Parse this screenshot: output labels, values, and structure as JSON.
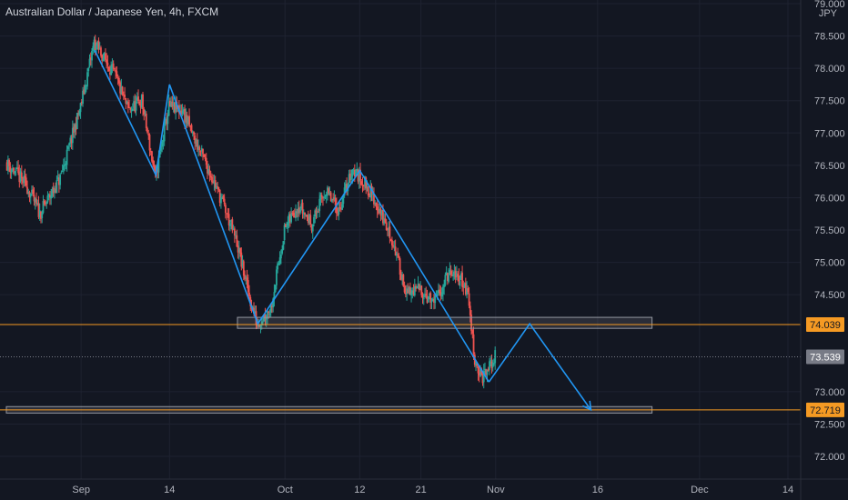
{
  "header": {
    "title": "Australian Dollar / Japanese Yen, 4h, FXCM",
    "currency": "JPY"
  },
  "chart_data": {
    "type": "candlestick",
    "ylim": [
      71.86,
      79.0
    ],
    "y_ticks": [
      {
        "value": 79.0,
        "label": "79.000"
      },
      {
        "value": 78.5,
        "label": "78.500"
      },
      {
        "value": 78.0,
        "label": "78.000"
      },
      {
        "value": 77.5,
        "label": "77.500"
      },
      {
        "value": 77.0,
        "label": "77.000"
      },
      {
        "value": 76.5,
        "label": "76.500"
      },
      {
        "value": 76.0,
        "label": "76.000"
      },
      {
        "value": 75.5,
        "label": "75.500"
      },
      {
        "value": 75.0,
        "label": "75.000"
      },
      {
        "value": 74.5,
        "label": "74.500"
      },
      {
        "value": 73.0,
        "label": "73.000"
      },
      {
        "value": 72.5,
        "label": "72.500"
      },
      {
        "value": 72.0,
        "label": "72.000"
      }
    ],
    "xlim": [
      "2020-08-21",
      "2020-12-14"
    ],
    "x_ticks": [
      {
        "date": "2020-09-01",
        "label": "Sep"
      },
      {
        "date": "2020-09-14",
        "label": "14"
      },
      {
        "date": "2020-10-01",
        "label": "Oct"
      },
      {
        "date": "2020-10-12",
        "label": "12"
      },
      {
        "date": "2020-10-21",
        "label": "21"
      },
      {
        "date": "2020-11-01",
        "label": "Nov"
      },
      {
        "date": "2020-11-16",
        "label": "16"
      },
      {
        "date": "2020-12-01",
        "label": "Dec"
      },
      {
        "date": "2020-12-14",
        "label": "14"
      }
    ],
    "price_path": [
      [
        "2020-08-21",
        76.55
      ],
      [
        "2020-08-24",
        76.2
      ],
      [
        "2020-08-26",
        75.75
      ],
      [
        "2020-08-29",
        76.3
      ],
      [
        "2020-09-01",
        77.4
      ],
      [
        "2020-09-03",
        78.4
      ],
      [
        "2020-09-06",
        77.9
      ],
      [
        "2020-09-08",
        77.35
      ],
      [
        "2020-09-10",
        77.5
      ],
      [
        "2020-09-12",
        76.3
      ],
      [
        "2020-09-14",
        77.4
      ],
      [
        "2020-09-16",
        77.35
      ],
      [
        "2020-09-18",
        76.85
      ],
      [
        "2020-09-20",
        76.4
      ],
      [
        "2020-09-22",
        75.9
      ],
      [
        "2020-09-24",
        75.3
      ],
      [
        "2020-09-26",
        74.4
      ],
      [
        "2020-09-27",
        74.05
      ],
      [
        "2020-09-29",
        74.3
      ],
      [
        "2020-10-01",
        75.5
      ],
      [
        "2020-10-03",
        75.9
      ],
      [
        "2020-10-05",
        75.6
      ],
      [
        "2020-10-07",
        76.1
      ],
      [
        "2020-10-09",
        75.8
      ],
      [
        "2020-10-11",
        76.45
      ],
      [
        "2020-10-13",
        76.2
      ],
      [
        "2020-10-15",
        75.8
      ],
      [
        "2020-10-17",
        75.3
      ],
      [
        "2020-10-19",
        74.5
      ],
      [
        "2020-10-21",
        74.6
      ],
      [
        "2020-10-23",
        74.35
      ],
      [
        "2020-10-25",
        74.8
      ],
      [
        "2020-10-27",
        74.75
      ],
      [
        "2020-10-28",
        74.5
      ],
      [
        "2020-10-29",
        73.5
      ],
      [
        "2020-10-30",
        73.2
      ],
      [
        "2020-10-31",
        73.35
      ],
      [
        "2020-11-01",
        73.539
      ]
    ],
    "annotations": {
      "zigzag_lines": [
        [
          [
            "2020-09-03",
            78.28
          ],
          [
            "2020-09-12",
            76.35
          ],
          [
            "2020-09-14",
            77.75
          ],
          [
            "2020-09-27",
            74.05
          ],
          [
            "2020-10-12",
            76.42
          ],
          [
            "2020-10-31",
            73.15
          ]
        ],
        [
          [
            "2020-10-31",
            73.15
          ],
          [
            "2020-11-06",
            74.05
          ],
          [
            "2020-11-15",
            72.72
          ]
        ]
      ],
      "zones": [
        {
          "from": "2020-09-24",
          "to": "2020-11-24",
          "y_top": 74.15,
          "y_bottom": 73.98
        },
        {
          "from": "2020-08-21",
          "to": "2020-11-24",
          "y_top": 72.77,
          "y_bottom": 72.67
        }
      ],
      "levels": [
        {
          "value": 74.039,
          "label": "74.039",
          "color": "#f59a23"
        },
        {
          "value": 73.539,
          "label": "73.539",
          "color": "#787b86",
          "note": "current price"
        },
        {
          "value": 72.719,
          "label": "72.719",
          "color": "#f59a23"
        }
      ]
    }
  },
  "colors": {
    "background": "#131722",
    "up": "#26a69a",
    "down": "#ef5350",
    "drawing": "#2196f3",
    "level": "#f59a23",
    "zone_border": "#9598a1",
    "grid": "#1e2230"
  }
}
